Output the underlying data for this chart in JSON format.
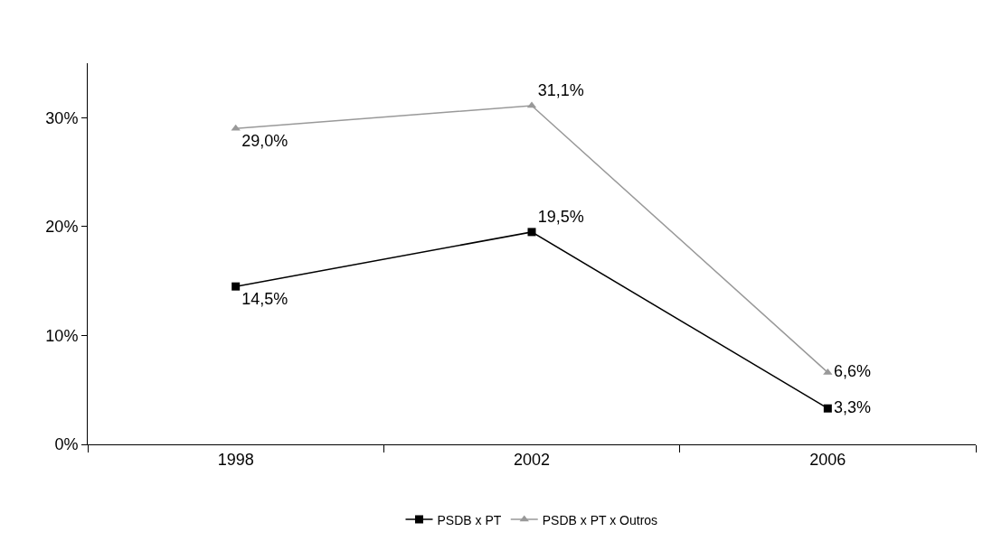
{
  "chart_data": {
    "type": "line",
    "categories": [
      "1998",
      "2002",
      "2006"
    ],
    "series": [
      {
        "name": "PSDB x PT",
        "color": "#000000",
        "marker": "square",
        "values": [
          14.5,
          19.5,
          3.3
        ],
        "value_labels": [
          "14,5%",
          "19,5%",
          "3,3%"
        ]
      },
      {
        "name": "PSDB x PT x Outros",
        "color": "#999999",
        "marker": "triangle",
        "values": [
          29.0,
          31.1,
          6.6
        ],
        "value_labels": [
          "29,0%",
          "31,1%",
          "6,6%"
        ]
      }
    ],
    "ylim": [
      0,
      35
    ],
    "yticks": [
      {
        "value": 0,
        "label": "0%"
      },
      {
        "value": 10,
        "label": "10%"
      },
      {
        "value": 20,
        "label": "20%"
      },
      {
        "value": 30,
        "label": "30%"
      }
    ],
    "legend": "bottom",
    "line_style": "solid"
  }
}
